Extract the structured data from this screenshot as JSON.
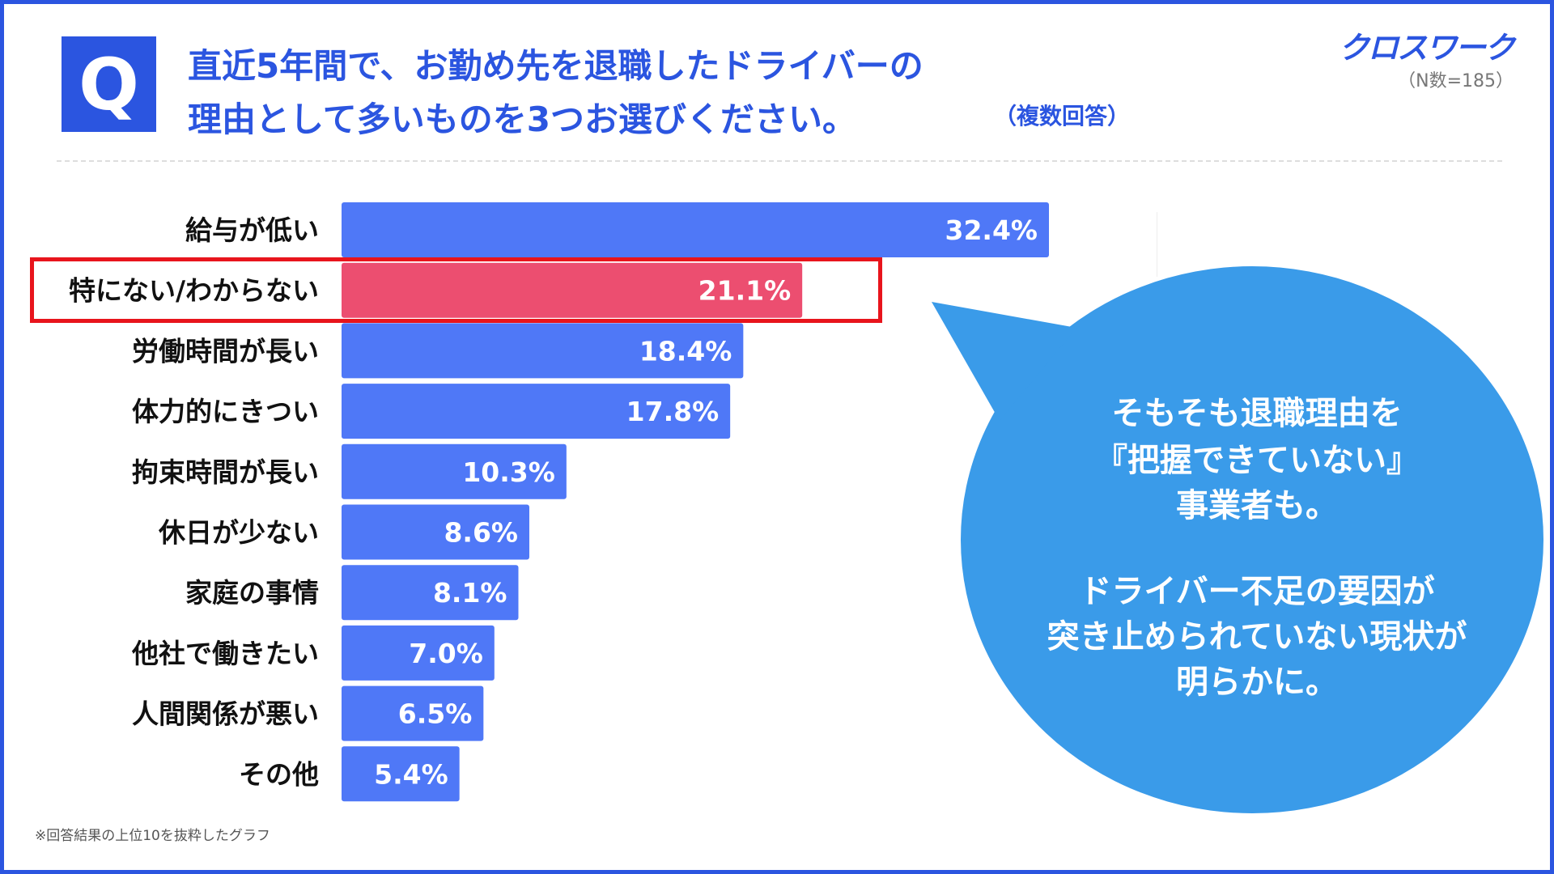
{
  "header": {
    "q_label": "Q",
    "title_line1": "直近5年間で、お勤め先を退職したドライバーの",
    "title_line2": "理由として多いものを3つお選びください。",
    "multi_answer": "（複数回答）",
    "logo": "クロスワーク",
    "sample_size": "（N数=185）"
  },
  "chart_data": {
    "type": "bar",
    "orientation": "horizontal",
    "title": "直近5年間で、お勤め先を退職したドライバーの理由として多いものを3つお選びください。",
    "categories": [
      "給与が低い",
      "特にない/わからない",
      "労働時間が長い",
      "体力的にきつい",
      "拘束時間が長い",
      "休日が少ない",
      "家庭の事情",
      "他社で働きたい",
      "人間関係が悪い",
      "その他"
    ],
    "values": [
      32.4,
      21.1,
      18.4,
      17.8,
      10.3,
      8.6,
      8.1,
      7.0,
      6.5,
      5.4
    ],
    "labels": [
      "32.4%",
      "21.1%",
      "18.4%",
      "17.8%",
      "10.3%",
      "8.6%",
      "8.1%",
      "7.0%",
      "6.5%",
      "5.4%"
    ],
    "highlight_index": 1,
    "unit": "%",
    "xlim": [
      0,
      32.4
    ],
    "colors": {
      "bar": "#4f78f7",
      "highlight": "#ec4e70",
      "highlight_border": "#e8141c"
    }
  },
  "callout": {
    "lines": [
      "そもそも退職理由を",
      "『把握できていない』",
      "事業者も。",
      "ドライバー不足の要因が",
      "突き止められていない現状が",
      "明らかに。"
    ],
    "color": "#3a9be9"
  },
  "footnote": "※回答結果の上位10を抜粋したグラフ"
}
